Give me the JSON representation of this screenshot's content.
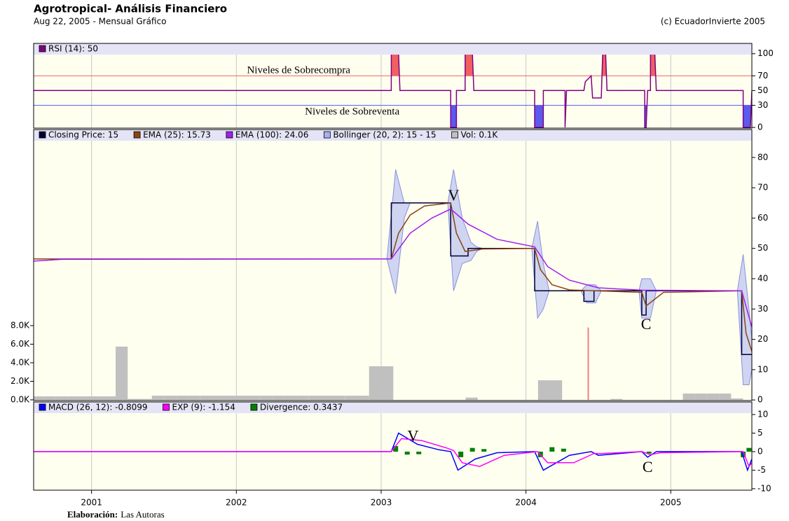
{
  "header": {
    "title": "Agrotropical- Análisis Financiero",
    "subtitle": "Aug 22, 2005 - Mensual Gráfico",
    "copyright": "(c) EcuadorInvierte 2005"
  },
  "footer": {
    "label": "Elaboración:",
    "text": "Las Autoras"
  },
  "chart_data": [
    {
      "type": "line",
      "xlim": [
        2000.6,
        2005.56
      ],
      "ylim": [
        -1,
        114
      ],
      "yticks": [
        0,
        30,
        50,
        70,
        100
      ],
      "reference_lines": [
        {
          "value": 70,
          "color": "#f06060",
          "fill": "above"
        },
        {
          "value": 30,
          "color": "#5a5af0",
          "fill": "below"
        }
      ],
      "series": [
        {
          "name": "RSI (14): 50",
          "color": "#800080",
          "x": [
            2000.6,
            2003.07,
            2003.07,
            2003.12,
            2003.13,
            2003.48,
            2003.48,
            2003.52,
            2003.52,
            2003.58,
            2003.58,
            2003.63,
            2003.64,
            2004.06,
            2004.06,
            2004.12,
            2004.12,
            2004.27,
            2004.27,
            2004.28,
            2004.4,
            2004.41,
            2004.45,
            2004.46,
            2004.52,
            2004.53,
            2004.55,
            2004.56,
            2004.82,
            2004.82,
            2004.83,
            2004.84,
            2004.86,
            2004.86,
            2004.89,
            2004.9,
            2005.5,
            2005.5,
            2005.55,
            2005.56
          ],
          "values": [
            50,
            50,
            100,
            100,
            50,
            50,
            0,
            0,
            50,
            50,
            100,
            100,
            50,
            50,
            0,
            0,
            50,
            50,
            0,
            50,
            50,
            62,
            70,
            40,
            40,
            100,
            100,
            50,
            50,
            0,
            0,
            50,
            50,
            100,
            100,
            50,
            50,
            0,
            0,
            50
          ]
        }
      ],
      "annotations": [
        {
          "text": "Niveles de Sobrecompra",
          "x": 2002.43,
          "y": 77,
          "color": "#a0401a"
        },
        {
          "text": "Niveles de Sobreventa",
          "x": 2002.8,
          "y": 21,
          "color": "#1a1a90"
        }
      ]
    },
    {
      "type": "line",
      "xlim": [
        2000.6,
        2005.56
      ],
      "ylim": [
        -0.2,
        89.2
      ],
      "yticks": [
        0,
        10,
        20,
        30,
        40,
        50,
        60,
        70,
        80
      ],
      "y2lim": [
        -75,
        29130
      ],
      "y2ticks": [
        {
          "value": 0,
          "label": "0.0K"
        },
        {
          "value": 2000,
          "label": "2.0K"
        },
        {
          "value": 4000,
          "label": "4.0K"
        },
        {
          "value": 6000,
          "label": "6.0K"
        },
        {
          "value": 8000,
          "label": "8.0K"
        }
      ],
      "series": [
        {
          "name": "Closing Price: 15",
          "color": "#000033",
          "x": [
            2000.6,
            2003.07,
            2003.07,
            2003.48,
            2003.48,
            2003.6,
            2003.6,
            2004.06,
            2004.06,
            2004.4,
            2004.4,
            2004.47,
            2004.47,
            2004.8,
            2004.8,
            2004.83,
            2004.83,
            2005.49,
            2005.49,
            2005.56
          ],
          "values": [
            46.5,
            46.5,
            65,
            65,
            47.5,
            47.5,
            50,
            50,
            36,
            36,
            32.5,
            32.5,
            36,
            36,
            28,
            28,
            36,
            36,
            15,
            15
          ]
        },
        {
          "name": "EMA (25): 15.73",
          "color": "#8b4513",
          "x": [
            2000.6,
            2003.07,
            2003.12,
            2003.2,
            2003.3,
            2003.48,
            2003.52,
            2003.58,
            2003.7,
            2004.06,
            2004.1,
            2004.18,
            2004.3,
            2004.8,
            2004.83,
            2004.95,
            2005.49,
            2005.52,
            2005.56
          ],
          "values": [
            46.5,
            46.5,
            55,
            61,
            64,
            65,
            55,
            49,
            49.8,
            50,
            43,
            38,
            36.3,
            35.5,
            31,
            35.5,
            36,
            22,
            16
          ]
        },
        {
          "name": "EMA (100): 24.06",
          "color": "#a020f0",
          "x": [
            2000.6,
            2000.8,
            2003.07,
            2003.2,
            2003.35,
            2003.48,
            2003.6,
            2003.8,
            2004.06,
            2004.15,
            2004.3,
            2004.5,
            2004.8,
            2005.49,
            2005.56
          ],
          "values": [
            45.8,
            46.4,
            46.5,
            55,
            60,
            63,
            58,
            53,
            50.5,
            44,
            39.5,
            37,
            36.2,
            36,
            24
          ]
        },
        {
          "name": "Bollinger (20, 2): 15 - 15",
          "type": "band",
          "color": "#a8b0f0",
          "x": [
            2000.6,
            2003.04,
            2003.1,
            2003.16,
            2003.2,
            2003.46,
            2003.5,
            2003.56,
            2003.62,
            2003.66,
            2003.7,
            2004.04,
            2004.08,
            2004.12,
            2004.16,
            2004.38,
            2004.42,
            2004.48,
            2004.52,
            2004.78,
            2004.8,
            2004.86,
            2004.9,
            2005.46,
            2005.5,
            2005.54,
            2005.56
          ],
          "upper": [
            46.5,
            46.5,
            76,
            65,
            65,
            65,
            76,
            60,
            52,
            50.5,
            50,
            50,
            59,
            45,
            36,
            36,
            38,
            38,
            36,
            36,
            40,
            40,
            36,
            36,
            48,
            30,
            20
          ],
          "lower": [
            46.5,
            46.5,
            35,
            60,
            65,
            65,
            36,
            45,
            46,
            49,
            50,
            50,
            27,
            30,
            36,
            36,
            32,
            32,
            36,
            36,
            27,
            27,
            36,
            36,
            5,
            5,
            10
          ]
        },
        {
          "name": "Vol: 0.1K",
          "type": "bar",
          "axis": "y2",
          "color": "#c0c0c0",
          "x": [
            2000.625,
            2000.708,
            2000.792,
            2000.875,
            2000.958,
            2001.042,
            2001.125,
            2001.208,
            2001.292,
            2001.375,
            2001.458,
            2001.542,
            2001.625,
            2001.708,
            2001.792,
            2001.875,
            2001.958,
            2002.042,
            2002.125,
            2002.208,
            2002.292,
            2002.375,
            2002.458,
            2002.542,
            2002.625,
            2002.708,
            2002.792,
            2002.875,
            2002.958,
            2003.042,
            2003.625,
            2004.125,
            2004.208,
            2004.625,
            2005.125,
            2005.208,
            2005.292,
            2005.375,
            2005.458
          ],
          "values": [
            380,
            380,
            380,
            380,
            380,
            380,
            380,
            5740,
            100,
            100,
            450,
            450,
            450,
            450,
            450,
            450,
            450,
            450,
            450,
            450,
            450,
            450,
            450,
            450,
            450,
            450,
            450,
            450,
            3620,
            3620,
            250,
            2110,
            2110,
            100,
            680,
            680,
            680,
            680,
            150
          ]
        }
      ],
      "volume_highlight": {
        "x": 2004.43,
        "value": 7800,
        "color": "#f08080"
      },
      "annotations": [
        {
          "text": "V",
          "x": 2003.5,
          "y": 67,
          "color": "#1a1a90"
        },
        {
          "text": "C",
          "x": 2004.83,
          "y": 24.5,
          "color": "#a0401a"
        }
      ]
    },
    {
      "type": "line",
      "xlim": [
        2000.6,
        2005.56
      ],
      "ylim": [
        -10.4,
        13.4
      ],
      "yticks": [
        -10,
        -5,
        0,
        5,
        10
      ],
      "xticks": [
        2001,
        2002,
        2003,
        2004,
        2005
      ],
      "series": [
        {
          "name": "Divergence: 0.3437",
          "type": "bar",
          "color": "#008000",
          "x": [
            2003.1,
            2003.18,
            2003.26,
            2003.55,
            2003.63,
            2003.71,
            2004.1,
            2004.18,
            2004.26,
            2004.85,
            2005.5,
            2005.54
          ],
          "values": [
            1.5,
            -0.8,
            -0.7,
            -1.5,
            1,
            0.7,
            -1.5,
            1.2,
            0.8,
            -0.5,
            -1.5,
            1
          ]
        },
        {
          "name": "MACD (26, 12): -0.8099",
          "color": "#0000ff",
          "x": [
            2000.6,
            2003.07,
            2003.12,
            2003.25,
            2003.4,
            2003.48,
            2003.53,
            2003.65,
            2003.8,
            2004.06,
            2004.12,
            2004.3,
            2004.45,
            2004.5,
            2004.8,
            2004.84,
            2004.9,
            2005.49,
            2005.53,
            2005.56
          ],
          "values": [
            0,
            0,
            5,
            2,
            0.5,
            0,
            -5,
            -2,
            -0.3,
            0,
            -5,
            -1,
            0,
            -1,
            0,
            -1.5,
            0,
            0,
            -5,
            -2
          ]
        },
        {
          "name": "EXP (9): -1.154",
          "color": "#ff00ff",
          "x": [
            2000.6,
            2003.07,
            2003.14,
            2003.28,
            2003.45,
            2003.5,
            2003.56,
            2003.68,
            2003.85,
            2004.08,
            2004.15,
            2004.33,
            2004.47,
            2004.52,
            2004.8,
            2004.86,
            2004.93,
            2005.5,
            2005.54,
            2005.56
          ],
          "values": [
            0,
            0,
            3.5,
            3,
            1,
            0.3,
            -3,
            -4,
            -1,
            0,
            -3,
            -3,
            -0.5,
            -0.5,
            0,
            -0.8,
            -0.3,
            0,
            -4,
            -3
          ]
        }
      ],
      "annotations": [
        {
          "text": "V",
          "x": 2003.22,
          "y": 3.9,
          "color": "#1a1a90"
        },
        {
          "text": "C",
          "x": 2004.84,
          "y": -4.5,
          "color": "#a0401a"
        }
      ]
    }
  ]
}
